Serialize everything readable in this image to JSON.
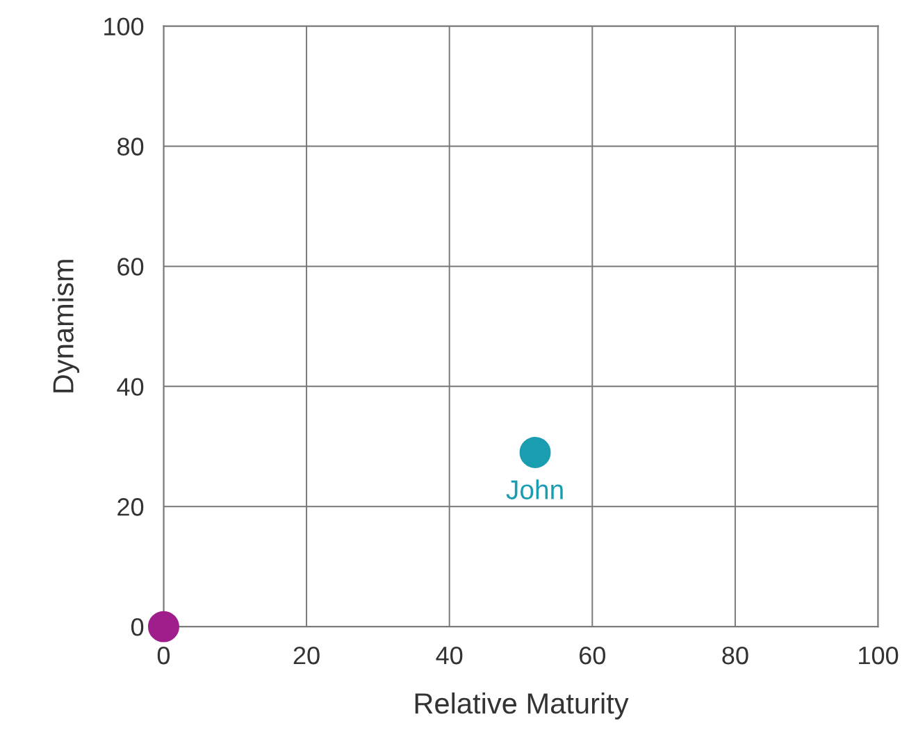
{
  "chart_data": {
    "type": "scatter",
    "xlabel": "Relative Maturity",
    "ylabel": "Dynamism",
    "series": [
      {
        "name": "John",
        "color": "#1a9db0",
        "x": [
          52
        ],
        "values": [
          29
        ]
      },
      {
        "color": "#a01e8c",
        "x": [
          0
        ],
        "values": [
          0
        ]
      }
    ],
    "xlim": [
      0,
      100
    ],
    "ylim": [
      0,
      100
    ],
    "xticks": [
      0,
      20,
      40,
      60,
      80,
      100
    ],
    "yticks": [
      0,
      20,
      40,
      60,
      80,
      100
    ],
    "grid": true,
    "marker": "circle",
    "legend": false
  }
}
